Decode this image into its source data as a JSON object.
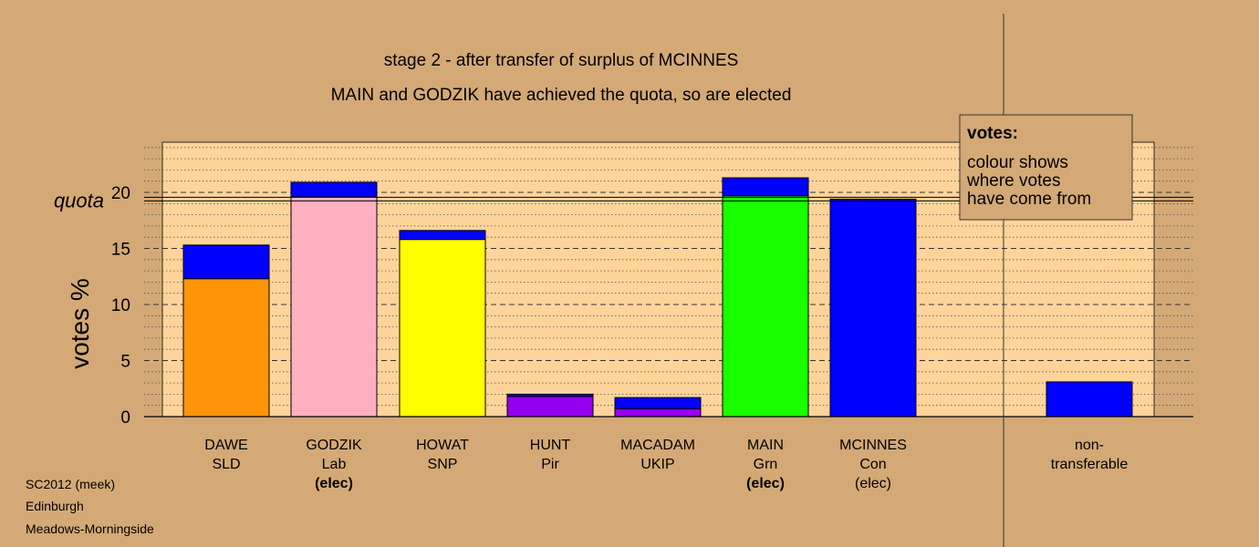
{
  "chart_data": {
    "type": "bar",
    "stacked": true,
    "title": "stage 2 - after transfer of surplus of MCINNES",
    "subtitle": "MAIN and GODZIK have achieved the quota, so are elected",
    "ylabel": "votes %",
    "ylim": [
      0,
      24.5
    ],
    "yticks": [
      0,
      5,
      10,
      15,
      20
    ],
    "quota": {
      "label": "quota",
      "value": 19.4
    },
    "categories": [
      {
        "name": "DAWE",
        "party": "SLD",
        "status": "",
        "status_bold": false
      },
      {
        "name": "GODZIK",
        "party": "Lab",
        "status": "(elec)",
        "status_bold": true
      },
      {
        "name": "HOWAT",
        "party": "SNP",
        "status": "",
        "status_bold": false
      },
      {
        "name": "HUNT",
        "party": "Pir",
        "status": "",
        "status_bold": false
      },
      {
        "name": "MACADAM",
        "party": "UKIP",
        "status": "",
        "status_bold": false
      },
      {
        "name": "MAIN",
        "party": "Grn",
        "status": "(elec)",
        "status_bold": true
      },
      {
        "name": "MCINNES",
        "party": "Con",
        "status": "(elec)",
        "status_bold": false
      },
      {
        "name": "non-",
        "party": "transferable",
        "status": "",
        "status_bold": false
      }
    ],
    "series": [
      {
        "values": [
          12.3,
          19.6,
          15.8,
          1.8,
          0.7,
          19.7,
          0,
          0
        ],
        "colors": [
          "#ff9408",
          "#ffb0c0",
          "#ffff00",
          "#9400ee",
          "#9400ee",
          "#19ff00",
          "#0000ff",
          "#0000ff"
        ]
      },
      {
        "values": [
          3.0,
          1.3,
          0.8,
          0.2,
          1.0,
          1.6,
          19.4,
          3.1
        ],
        "color": "#0000ff"
      }
    ],
    "legend": {
      "title": "votes:",
      "lines": [
        "colour shows",
        "where votes",
        "have come from"
      ],
      "placement": "top-right"
    }
  },
  "footer": {
    "line1": "SC2012 (meek)",
    "line2": "Edinburgh",
    "line3": "Meadows-Morningside"
  }
}
